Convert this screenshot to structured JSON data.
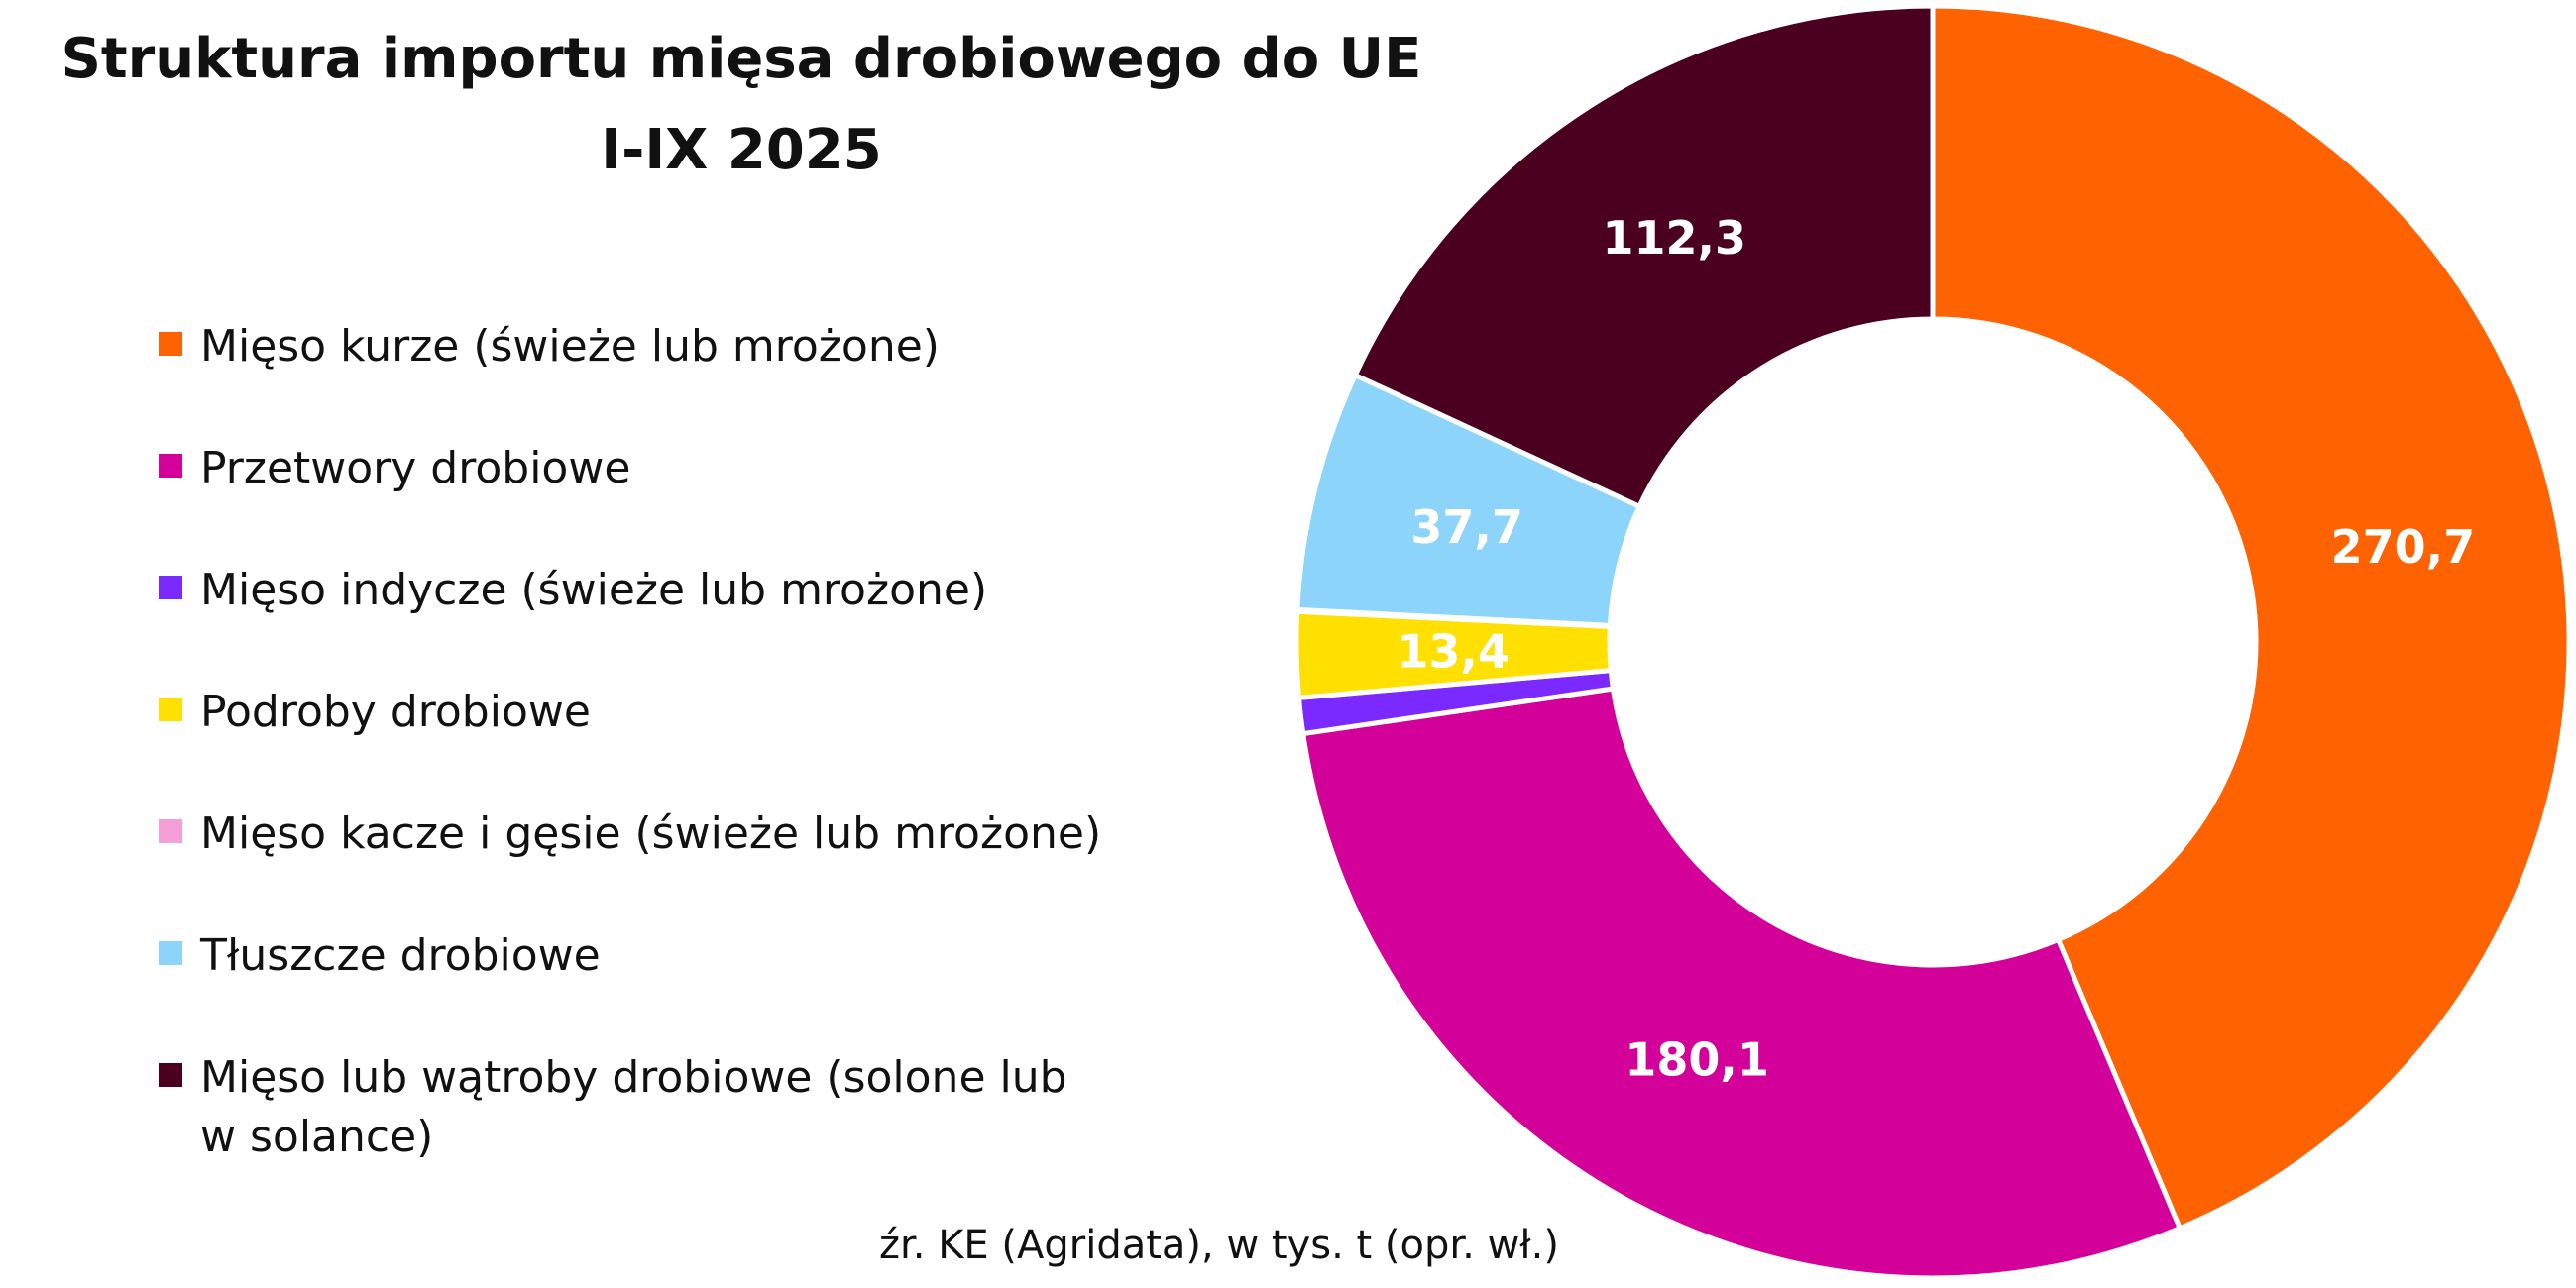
{
  "chart_data": {
    "type": "pie",
    "title_lines": [
      "Struktura importu mięsa drobiowego do UE",
      "I-IX 2025"
    ],
    "source": "źr. KE (Agridata), w tys. t (opr. wł.)",
    "slices": [
      {
        "label": "Mięso kurze (świeże lub mrożone)",
        "value": 270.7,
        "value_text": "270,7",
        "color": "#FF6200",
        "show_value": true
      },
      {
        "label": "Przetwory drobiowe",
        "value": 180.1,
        "value_text": "180,1",
        "color": "#D3009A",
        "show_value": true
      },
      {
        "label": "Mięso indycze (świeże lub mrożone)",
        "value": 5.6,
        "value_text": "5,6",
        "color": "#7A29FF",
        "show_value": false
      },
      {
        "label": "Podroby drobiowe",
        "value": 13.4,
        "value_text": "13,4",
        "color": "#FFE000",
        "show_value": true
      },
      {
        "label": "Mięso kacze i gęsie (świeże lub mrożone)",
        "value": 0.3,
        "value_text": "0,3",
        "color": "#F59ED8",
        "show_value": false
      },
      {
        "label": "Tłuszcze drobiowe",
        "value": 37.7,
        "value_text": "37,7",
        "color": "#8CD4FA",
        "show_value": true
      },
      {
        "label_lines": [
          "Mięso lub wątroby drobiowe (solone lub",
          "w solance)"
        ],
        "label": "Mięso lub wątroby drobiowe (solone lub w solance)",
        "value": 112.3,
        "value_text": "112,3",
        "color": "#4B0020",
        "show_value": true
      }
    ],
    "legend_position": "left",
    "start_angle": "12 o'clock",
    "direction": "clockwise",
    "donut": true
  }
}
